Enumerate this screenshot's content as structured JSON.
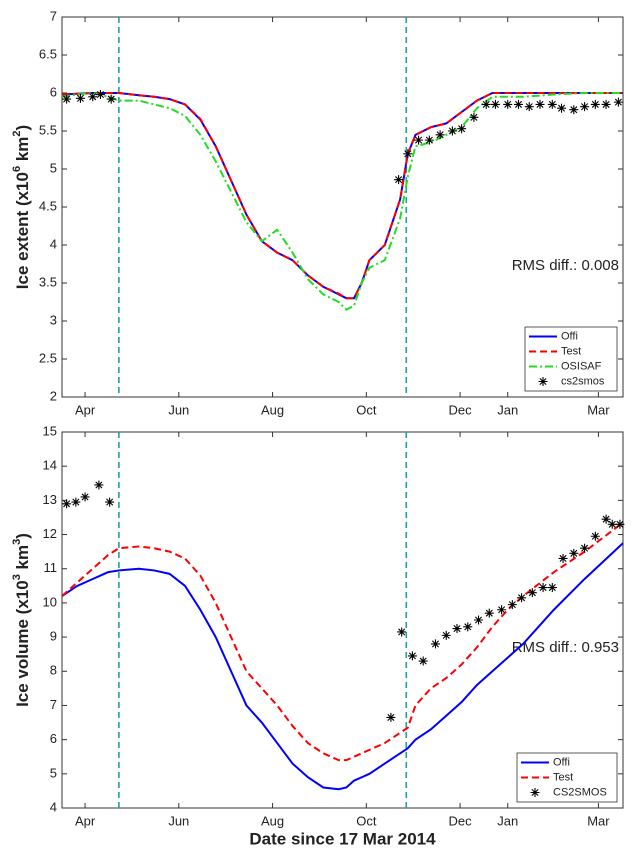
{
  "chart_data": [
    {
      "type": "line",
      "ylabel_parts": [
        "Ice extent (x10",
        "6",
        " km",
        "2",
        ")"
      ],
      "annotation": "RMS  diff.: 0.008",
      "xlim": [
        0,
        365
      ],
      "ylim": [
        2,
        7
      ],
      "yticks": [
        2,
        2.5,
        3,
        3.5,
        4,
        4.5,
        5,
        5.5,
        6,
        6.5,
        7
      ],
      "xticks": [
        {
          "value": 15,
          "label": "Apr"
        },
        {
          "value": 76,
          "label": "Jun"
        },
        {
          "value": 137,
          "label": "Aug"
        },
        {
          "value": 198,
          "label": "Oct"
        },
        {
          "value": 259,
          "label": "Dec"
        },
        {
          "value": 290,
          "label": "Jan"
        },
        {
          "value": 349,
          "label": "Mar"
        }
      ],
      "vlines": [
        37,
        224
      ],
      "vline_color": "#1f9fa0",
      "legend": "lower right",
      "x": [
        0,
        10,
        20,
        30,
        37,
        50,
        60,
        70,
        80,
        90,
        100,
        110,
        120,
        130,
        140,
        150,
        160,
        170,
        180,
        185,
        190,
        195,
        200,
        210,
        220,
        225,
        230,
        240,
        250,
        260,
        270,
        280,
        290,
        300,
        320,
        340,
        365
      ],
      "series": [
        {
          "name": "Offi",
          "color": "#0000ff",
          "style": "solid",
          "values": [
            5.98,
            5.99,
            6.0,
            6.0,
            6.0,
            5.97,
            5.95,
            5.92,
            5.85,
            5.65,
            5.3,
            4.85,
            4.4,
            4.05,
            3.9,
            3.8,
            3.6,
            3.45,
            3.35,
            3.3,
            3.3,
            3.5,
            3.8,
            4.0,
            4.6,
            5.2,
            5.45,
            5.55,
            5.6,
            5.75,
            5.9,
            6.0,
            6.0,
            6.0,
            6.0,
            6.0,
            6.0
          ]
        },
        {
          "name": "Test",
          "color": "#ff0000",
          "style": "dashed",
          "values": [
            5.98,
            5.99,
            6.0,
            6.0,
            6.0,
            5.97,
            5.95,
            5.92,
            5.85,
            5.66,
            5.3,
            4.85,
            4.4,
            4.05,
            3.9,
            3.8,
            3.6,
            3.45,
            3.36,
            3.3,
            3.3,
            3.5,
            3.8,
            4.0,
            4.6,
            5.2,
            5.45,
            5.55,
            5.6,
            5.75,
            5.9,
            6.0,
            6.0,
            6.0,
            6.0,
            6.0,
            6.0
          ]
        },
        {
          "name": "OSISAF",
          "color": "#22dd22",
          "style": "dashdot",
          "values": [
            5.95,
            5.98,
            6.0,
            5.95,
            5.9,
            5.9,
            5.85,
            5.8,
            5.7,
            5.45,
            5.1,
            4.7,
            4.3,
            4.05,
            4.2,
            3.9,
            3.55,
            3.35,
            3.25,
            3.15,
            3.2,
            3.5,
            3.7,
            3.8,
            4.35,
            4.9,
            5.3,
            5.35,
            5.45,
            5.55,
            5.8,
            5.95,
            5.95,
            5.95,
            5.98,
            6.0,
            6.0
          ]
        },
        {
          "name": "cs2smos",
          "color": "#000000",
          "style": "marker",
          "x": [
            3,
            12,
            20,
            25,
            32,
            219,
            225,
            232,
            239,
            246,
            254,
            260,
            268,
            276,
            282,
            290,
            297,
            304,
            311,
            319,
            325,
            333,
            340,
            347,
            354,
            362
          ],
          "values": [
            5.92,
            5.93,
            5.95,
            5.98,
            5.92,
            4.86,
            5.2,
            5.38,
            5.38,
            5.45,
            5.5,
            5.53,
            5.68,
            5.85,
            5.85,
            5.85,
            5.85,
            5.82,
            5.85,
            5.85,
            5.8,
            5.78,
            5.82,
            5.85,
            5.85,
            5.88
          ]
        }
      ]
    },
    {
      "type": "line",
      "ylabel_parts": [
        "Ice volume (x10",
        "3",
        " km",
        "3",
        ")"
      ],
      "xlabel": "Date since 17 Mar 2014",
      "annotation": "RMS  diff.: 0.953",
      "xlim": [
        0,
        365
      ],
      "ylim": [
        4,
        15
      ],
      "yticks": [
        4,
        5,
        6,
        7,
        8,
        9,
        10,
        11,
        12,
        13,
        14,
        15
      ],
      "xticks": [
        {
          "value": 15,
          "label": "Apr"
        },
        {
          "value": 76,
          "label": "Jun"
        },
        {
          "value": 137,
          "label": "Aug"
        },
        {
          "value": 198,
          "label": "Oct"
        },
        {
          "value": 259,
          "label": "Dec"
        },
        {
          "value": 290,
          "label": "Jan"
        },
        {
          "value": 349,
          "label": "Mar"
        }
      ],
      "vlines": [
        37,
        224
      ],
      "vline_color": "#1f9fa0",
      "legend": "lower right",
      "x": [
        0,
        10,
        20,
        30,
        37,
        50,
        60,
        70,
        80,
        90,
        100,
        110,
        120,
        130,
        140,
        150,
        160,
        170,
        180,
        185,
        190,
        195,
        200,
        210,
        220,
        225,
        230,
        240,
        250,
        260,
        270,
        280,
        290,
        300,
        320,
        340,
        365
      ],
      "series": [
        {
          "name": "Offi",
          "color": "#0000ff",
          "style": "solid",
          "values": [
            10.2,
            10.5,
            10.7,
            10.9,
            10.95,
            11.0,
            10.95,
            10.85,
            10.5,
            9.8,
            9.0,
            8.0,
            7.0,
            6.5,
            5.9,
            5.3,
            4.9,
            4.6,
            4.55,
            4.6,
            4.8,
            4.9,
            5.0,
            5.3,
            5.6,
            5.75,
            6.0,
            6.3,
            6.7,
            7.1,
            7.6,
            8.0,
            8.4,
            8.8,
            9.8,
            10.7,
            11.75
          ]
        },
        {
          "name": "Test",
          "color": "#ff0000",
          "style": "dashed",
          "values": [
            10.2,
            10.6,
            11.0,
            11.4,
            11.6,
            11.65,
            11.6,
            11.5,
            11.3,
            10.8,
            10.0,
            9.0,
            8.0,
            7.5,
            7.0,
            6.4,
            5.9,
            5.6,
            5.4,
            5.4,
            5.5,
            5.6,
            5.7,
            5.9,
            6.2,
            6.35,
            7.0,
            7.5,
            7.8,
            8.2,
            8.7,
            9.3,
            9.8,
            10.2,
            10.9,
            11.5,
            12.35
          ]
        },
        {
          "name": "CS2SMOS",
          "color": "#000000",
          "style": "marker",
          "x": [
            3,
            9,
            15,
            24,
            31,
            214,
            221,
            228,
            235,
            243,
            250,
            257,
            264,
            271,
            278,
            286,
            293,
            299,
            306,
            313,
            319,
            326,
            333,
            340,
            347,
            354,
            358,
            363
          ],
          "values": [
            12.9,
            12.95,
            13.1,
            13.45,
            12.95,
            6.65,
            9.15,
            8.45,
            8.3,
            8.8,
            9.05,
            9.25,
            9.3,
            9.5,
            9.7,
            9.8,
            9.95,
            10.15,
            10.3,
            10.45,
            10.45,
            11.3,
            11.45,
            11.6,
            11.95,
            12.45,
            12.3,
            12.3
          ]
        }
      ]
    }
  ]
}
